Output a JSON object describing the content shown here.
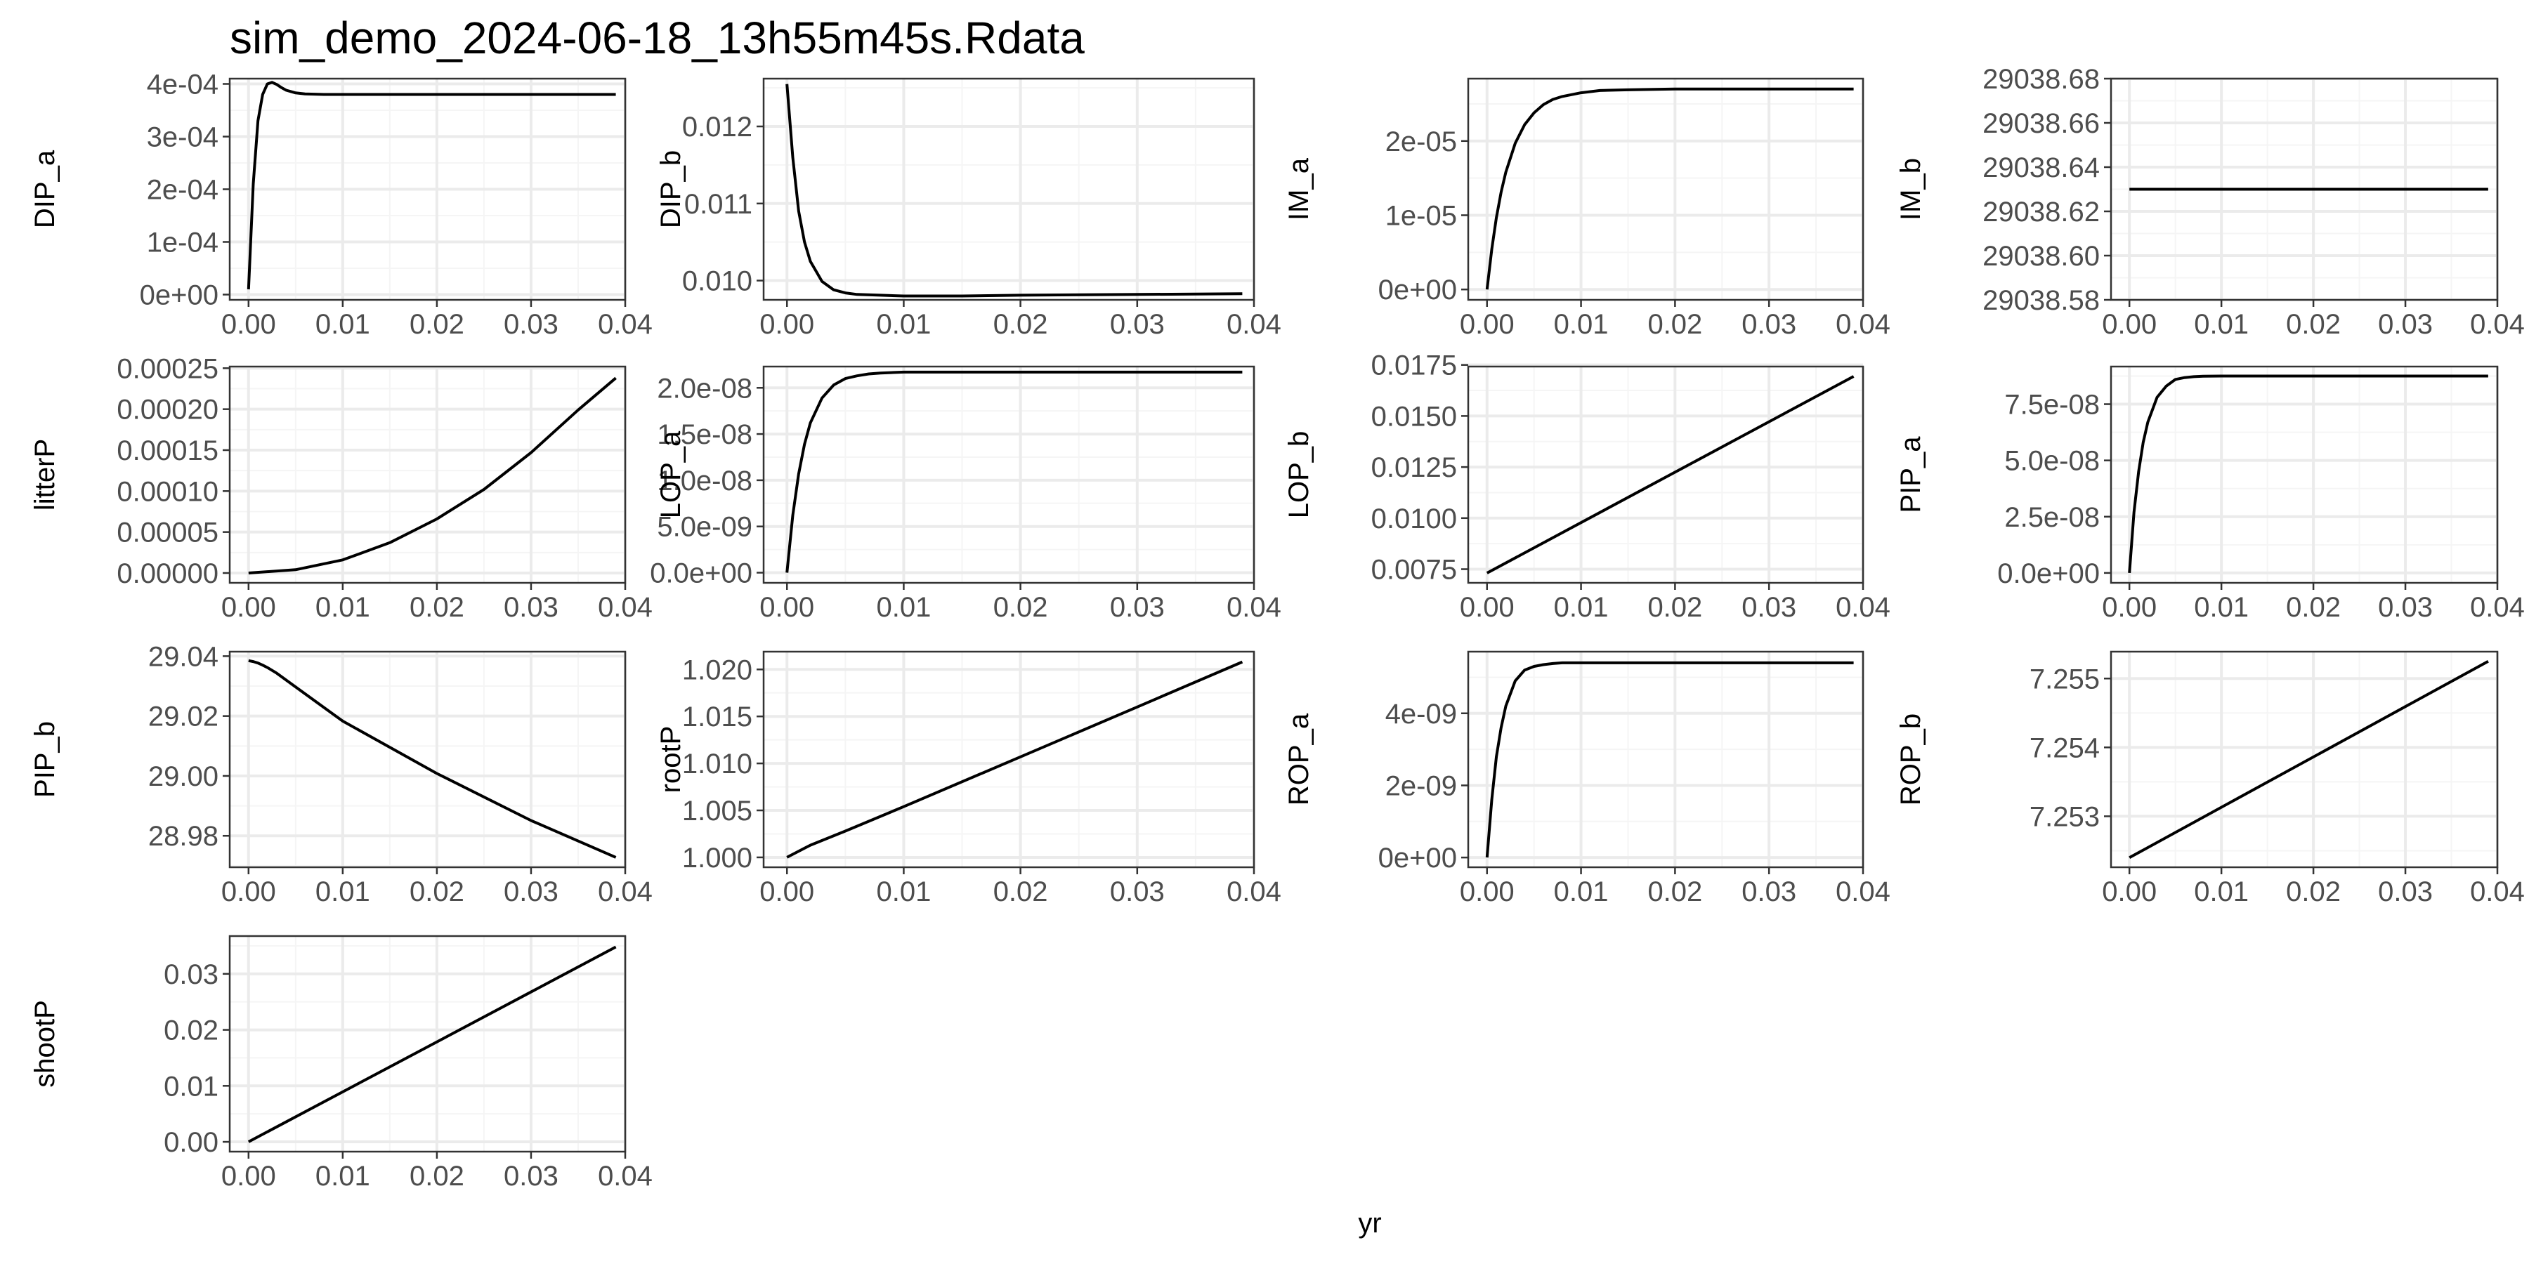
{
  "title": "sim_demo_2024-06-18_13h55m45s.Rdata",
  "x_axis_title": "yr",
  "colors": {
    "panel_border": "#333333",
    "grid_major": "#ebebeb",
    "grid_minor": "#f5f5f5",
    "line": "#000000",
    "tick_text": "#4d4d4d"
  },
  "chart_data": [
    {
      "type": "line",
      "ylabel": "DIP_a",
      "xlabel": "yr",
      "xlim": [
        -0.002,
        0.04
      ],
      "ylim": [
        -1e-05,
        0.00041
      ],
      "xticks": [
        0,
        0.01,
        0.02,
        0.03,
        0.04
      ],
      "xtick_labels": [
        "0.00",
        "0.01",
        "0.02",
        "0.03",
        "0.04"
      ],
      "yticks": [
        0,
        0.0001,
        0.0002,
        0.0003,
        0.0004
      ],
      "ytick_labels": [
        "0e+00",
        "1e-04",
        "2e-04",
        "3e-04",
        "4e-04"
      ],
      "x": [
        0,
        0.0005,
        0.001,
        0.0015,
        0.002,
        0.0025,
        0.003,
        0.0035,
        0.004,
        0.005,
        0.006,
        0.008,
        0.01,
        0.02,
        0.03,
        0.039
      ],
      "y": [
        1e-05,
        0.00021,
        0.00033,
        0.00038,
        0.0004,
        0.000403,
        0.000399,
        0.000393,
        0.000388,
        0.000383,
        0.000381,
        0.00038,
        0.00038,
        0.00038,
        0.00038,
        0.00038
      ]
    },
    {
      "type": "line",
      "ylabel": "DIP_b",
      "xlabel": "yr",
      "xlim": [
        -0.002,
        0.04
      ],
      "ylim": [
        0.00975,
        0.01262
      ],
      "xticks": [
        0,
        0.01,
        0.02,
        0.03,
        0.04
      ],
      "xtick_labels": [
        "0.00",
        "0.01",
        "0.02",
        "0.03",
        "0.04"
      ],
      "yticks": [
        0.01,
        0.011,
        0.012
      ],
      "ytick_labels": [
        "0.010",
        "0.011",
        "0.012"
      ],
      "x": [
        0,
        0.0005,
        0.001,
        0.0015,
        0.002,
        0.003,
        0.004,
        0.005,
        0.006,
        0.008,
        0.01,
        0.015,
        0.02,
        0.03,
        0.039
      ],
      "y": [
        0.01255,
        0.0116,
        0.0109,
        0.0105,
        0.01025,
        0.00999,
        0.00988,
        0.00984,
        0.00982,
        0.00981,
        0.0098,
        0.0098,
        0.00981,
        0.00982,
        0.00983
      ]
    },
    {
      "type": "line",
      "ylabel": "IM_a",
      "xlabel": "yr",
      "xlim": [
        -0.002,
        0.04
      ],
      "ylim": [
        -1.4e-06,
        2.84e-05
      ],
      "xticks": [
        0,
        0.01,
        0.02,
        0.03,
        0.04
      ],
      "xtick_labels": [
        "0.00",
        "0.01",
        "0.02",
        "0.03",
        "0.04"
      ],
      "yticks": [
        0,
        1e-05,
        2e-05
      ],
      "ytick_labels": [
        "0e+00",
        "1e-05",
        "2e-05"
      ],
      "x": [
        0,
        0.0005,
        0.001,
        0.0015,
        0.002,
        0.003,
        0.004,
        0.005,
        0.006,
        0.007,
        0.008,
        0.01,
        0.012,
        0.015,
        0.02,
        0.03,
        0.039
      ],
      "y": [
        0,
        5.4e-06,
        9.7e-06,
        1.31e-05,
        1.58e-05,
        1.97e-05,
        2.22e-05,
        2.38e-05,
        2.49e-05,
        2.56e-05,
        2.6e-05,
        2.65e-05,
        2.68e-05,
        2.69e-05,
        2.7e-05,
        2.7e-05,
        2.7e-05
      ]
    },
    {
      "type": "line",
      "ylabel": "IM_b",
      "xlabel": "yr",
      "xlim": [
        -0.002,
        0.04
      ],
      "ylim": [
        29038.58,
        29038.68
      ],
      "xticks": [
        0,
        0.01,
        0.02,
        0.03,
        0.04
      ],
      "xtick_labels": [
        "0.00",
        "0.01",
        "0.02",
        "0.03",
        "0.04"
      ],
      "yticks": [
        29038.58,
        29038.6,
        29038.62,
        29038.64,
        29038.66,
        29038.68
      ],
      "ytick_labels": [
        "29038.58",
        "29038.60",
        "29038.62",
        "29038.64",
        "29038.66",
        "29038.68"
      ],
      "x": [
        0,
        0.039
      ],
      "y": [
        29038.63,
        29038.63
      ]
    },
    {
      "type": "line",
      "ylabel": "litterP",
      "xlabel": "yr",
      "xlim": [
        -0.002,
        0.04
      ],
      "ylim": [
        -1.2e-05,
        0.000252
      ],
      "xticks": [
        0,
        0.01,
        0.02,
        0.03,
        0.04
      ],
      "xtick_labels": [
        "0.00",
        "0.01",
        "0.02",
        "0.03",
        "0.04"
      ],
      "yticks": [
        0,
        5e-05,
        0.0001,
        0.00015,
        0.0002,
        0.00025
      ],
      "ytick_labels": [
        "0.00000",
        "0.00005",
        "0.00010",
        "0.00015",
        "0.00020",
        "0.00025"
      ],
      "x": [
        0,
        0.005,
        0.01,
        0.015,
        0.02,
        0.025,
        0.03,
        0.035,
        0.039
      ],
      "y": [
        0,
        4e-06,
        1.6e-05,
        3.7e-05,
        6.6e-05,
        0.000102,
        0.000147,
        0.000199,
        0.000238
      ]
    },
    {
      "type": "line",
      "ylabel": "LOP_a",
      "xlabel": "yr",
      "xlim": [
        -0.002,
        0.04
      ],
      "ylim": [
        -1.1e-09,
        2.23e-08
      ],
      "xticks": [
        0,
        0.01,
        0.02,
        0.03,
        0.04
      ],
      "xtick_labels": [
        "0.00",
        "0.01",
        "0.02",
        "0.03",
        "0.04"
      ],
      "yticks": [
        0,
        5e-09,
        1e-08,
        1.5e-08,
        2e-08
      ],
      "ytick_labels": [
        "0.0e+00",
        "5.0e-09",
        "1.0e-08",
        "1.5e-08",
        "2.0e-08"
      ],
      "x": [
        0,
        0.0005,
        0.001,
        0.0015,
        0.002,
        0.003,
        0.004,
        0.005,
        0.006,
        0.007,
        0.008,
        0.01,
        0.012,
        0.015,
        0.02,
        0.03,
        0.039
      ],
      "y": [
        0,
        6.2e-09,
        1.07e-08,
        1.39e-08,
        1.62e-08,
        1.89e-08,
        2.03e-08,
        2.1e-08,
        2.13e-08,
        2.15e-08,
        2.16e-08,
        2.17e-08,
        2.17e-08,
        2.17e-08,
        2.17e-08,
        2.17e-08,
        2.17e-08
      ]
    },
    {
      "type": "line",
      "ylabel": "LOP_b",
      "xlabel": "yr",
      "xlim": [
        -0.002,
        0.04
      ],
      "ylim": [
        0.00683,
        0.01742
      ],
      "xticks": [
        0,
        0.01,
        0.02,
        0.03,
        0.04
      ],
      "xtick_labels": [
        "0.00",
        "0.01",
        "0.02",
        "0.03",
        "0.04"
      ],
      "yticks": [
        0.0075,
        0.01,
        0.0125,
        0.015,
        0.0175
      ],
      "ytick_labels": [
        "0.0075",
        "0.0100",
        "0.0125",
        "0.0150",
        "0.0175"
      ],
      "x": [
        0,
        0.039
      ],
      "y": [
        0.00731,
        0.01694
      ]
    },
    {
      "type": "line",
      "ylabel": "PIP_a",
      "xlabel": "yr",
      "xlim": [
        -0.002,
        0.04
      ],
      "ylim": [
        -4.4e-09,
        9.17e-08
      ],
      "xticks": [
        0,
        0.01,
        0.02,
        0.03,
        0.04
      ],
      "xtick_labels": [
        "0.00",
        "0.01",
        "0.02",
        "0.03",
        "0.04"
      ],
      "yticks": [
        0,
        2.5e-08,
        5e-08,
        7.5e-08
      ],
      "ytick_labels": [
        "0.0e+00",
        "2.5e-08",
        "5.0e-08",
        "7.5e-08"
      ],
      "x": [
        0,
        0.0005,
        0.001,
        0.0015,
        0.002,
        0.003,
        0.004,
        0.005,
        0.006,
        0.007,
        0.008,
        0.01,
        0.012,
        0.015,
        0.02,
        0.03,
        0.039
      ],
      "y": [
        0,
        2.7e-08,
        4.5e-08,
        5.8e-08,
        6.7e-08,
        7.8e-08,
        8.3e-08,
        8.6e-08,
        8.68e-08,
        8.72e-08,
        8.74e-08,
        8.75e-08,
        8.75e-08,
        8.75e-08,
        8.75e-08,
        8.75e-08,
        8.75e-08
      ]
    },
    {
      "type": "line",
      "ylabel": "PIP_b",
      "xlabel": "yr",
      "xlim": [
        -0.002,
        0.04
      ],
      "ylim": [
        28.9695,
        29.0415
      ],
      "xticks": [
        0,
        0.01,
        0.02,
        0.03,
        0.04
      ],
      "xtick_labels": [
        "0.00",
        "0.01",
        "0.02",
        "0.03",
        "0.04"
      ],
      "yticks": [
        28.98,
        29,
        29.02,
        29.04
      ],
      "ytick_labels": [
        "28.98",
        "29.00",
        "29.02",
        "29.04"
      ],
      "x": [
        0,
        0.0005,
        0.001,
        0.0015,
        0.002,
        0.003,
        0.005,
        0.01,
        0.02,
        0.03,
        0.039
      ],
      "y": [
        29.0385,
        29.0382,
        29.0377,
        29.037,
        29.0362,
        29.0343,
        29.0297,
        29.0183,
        29.0008,
        28.9851,
        28.9728
      ]
    },
    {
      "type": "line",
      "ylabel": "rootP",
      "xlabel": "yr",
      "xlim": [
        -0.002,
        0.04
      ],
      "ylim": [
        0.99895,
        1.02189
      ],
      "xticks": [
        0,
        0.01,
        0.02,
        0.03,
        0.04
      ],
      "xtick_labels": [
        "0.00",
        "0.01",
        "0.02",
        "0.03",
        "0.04"
      ],
      "yticks": [
        1,
        1.005,
        1.01,
        1.015,
        1.02
      ],
      "ytick_labels": [
        "1.000",
        "1.005",
        "1.010",
        "1.015",
        "1.020"
      ],
      "x": [
        0,
        0.002,
        0.005,
        0.01,
        0.02,
        0.03,
        0.039
      ],
      "y": [
        1.0,
        1.0013,
        1.0028,
        1.0054,
        1.0107,
        1.016,
        1.0208
      ]
    },
    {
      "type": "line",
      "ylabel": "ROP_a",
      "xlabel": "yr",
      "xlim": [
        -0.002,
        0.04
      ],
      "ylim": [
        -2.7e-10,
        5.71e-09
      ],
      "xticks": [
        0,
        0.01,
        0.02,
        0.03,
        0.04
      ],
      "xtick_labels": [
        "0.00",
        "0.01",
        "0.02",
        "0.03",
        "0.04"
      ],
      "yticks": [
        0,
        2e-09,
        4e-09
      ],
      "ytick_labels": [
        "0e+00",
        "2e-09",
        "4e-09"
      ],
      "x": [
        0,
        0.0005,
        0.001,
        0.0015,
        0.002,
        0.003,
        0.004,
        0.005,
        0.006,
        0.007,
        0.008,
        0.01,
        0.012,
        0.015,
        0.02,
        0.03,
        0.039
      ],
      "y": [
        0,
        1.6e-09,
        2.8e-09,
        3.6e-09,
        4.2e-09,
        4.9e-09,
        5.2e-09,
        5.3e-09,
        5.35e-09,
        5.38e-09,
        5.4e-09,
        5.4e-09,
        5.4e-09,
        5.4e-09,
        5.4e-09,
        5.4e-09,
        5.4e-09
      ]
    },
    {
      "type": "line",
      "ylabel": "ROP_b",
      "xlabel": "yr",
      "xlim": [
        -0.002,
        0.04
      ],
      "ylim": [
        7.25226,
        7.25539
      ],
      "xticks": [
        0,
        0.01,
        0.02,
        0.03,
        0.04
      ],
      "xtick_labels": [
        "0.00",
        "0.01",
        "0.02",
        "0.03",
        "0.04"
      ],
      "yticks": [
        7.253,
        7.254,
        7.255
      ],
      "ytick_labels": [
        "7.253",
        "7.254",
        "7.255"
      ],
      "x": [
        0,
        0.039
      ],
      "y": [
        7.2524,
        7.25525
      ]
    },
    {
      "type": "line",
      "ylabel": "shootP",
      "xlabel": "yr",
      "xlim": [
        -0.002,
        0.04
      ],
      "ylim": [
        -0.00175,
        0.03675
      ],
      "xticks": [
        0,
        0.01,
        0.02,
        0.03,
        0.04
      ],
      "xtick_labels": [
        "0.00",
        "0.01",
        "0.02",
        "0.03",
        "0.04"
      ],
      "yticks": [
        0,
        0.01,
        0.02,
        0.03
      ],
      "ytick_labels": [
        "0.00",
        "0.01",
        "0.02",
        "0.03"
      ],
      "x": [
        0,
        0.039
      ],
      "y": [
        0,
        0.0348
      ]
    }
  ]
}
